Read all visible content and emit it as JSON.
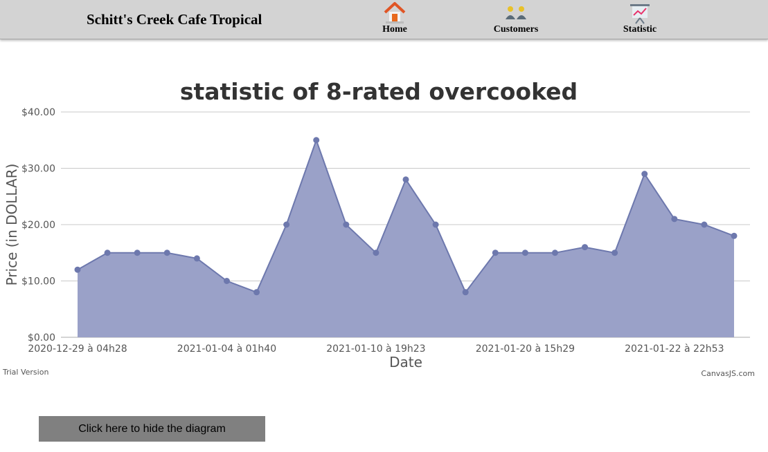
{
  "header": {
    "brand": "Schitt's Creek Cafe Tropical",
    "nav": [
      {
        "label": "Home",
        "icon": "home-icon"
      },
      {
        "label": "Customers",
        "icon": "customers-icon"
      },
      {
        "label": "Statistic",
        "icon": "statistic-icon"
      }
    ]
  },
  "chart_data": {
    "type": "area",
    "title": "statistic of 8-rated overcooked",
    "xlabel": "Date",
    "ylabel": "Price (in DOLLAR)",
    "ylim": [
      0,
      40
    ],
    "yticks": [
      "$0.00",
      "$10.00",
      "$20.00",
      "$30.00",
      "$40.00"
    ],
    "x_tick_labels": [
      {
        "index": 0,
        "label": "2020-12-29 à 04h28"
      },
      {
        "index": 5,
        "label": "2021-01-04 à 01h40"
      },
      {
        "index": 10,
        "label": "2021-01-10 à 19h23"
      },
      {
        "index": 15,
        "label": "2021-01-20 à 15h29"
      },
      {
        "index": 20,
        "label": "2021-01-22 à 22h53"
      }
    ],
    "values": [
      12,
      15,
      15,
      15,
      14,
      10,
      8,
      20,
      35,
      20,
      15,
      28,
      20,
      8,
      15,
      15,
      15,
      16,
      15,
      29,
      21,
      20,
      18
    ],
    "grid": true,
    "colors": {
      "fill": "#9aa1c8",
      "line": "#6d78ad",
      "marker": "#6d78ad",
      "grid": "#c8c8c8"
    }
  },
  "watermark": {
    "left": "Trial Version",
    "right": "CanvasJS.com"
  },
  "toggle_button": {
    "label": "Click here to hide the diagram"
  }
}
